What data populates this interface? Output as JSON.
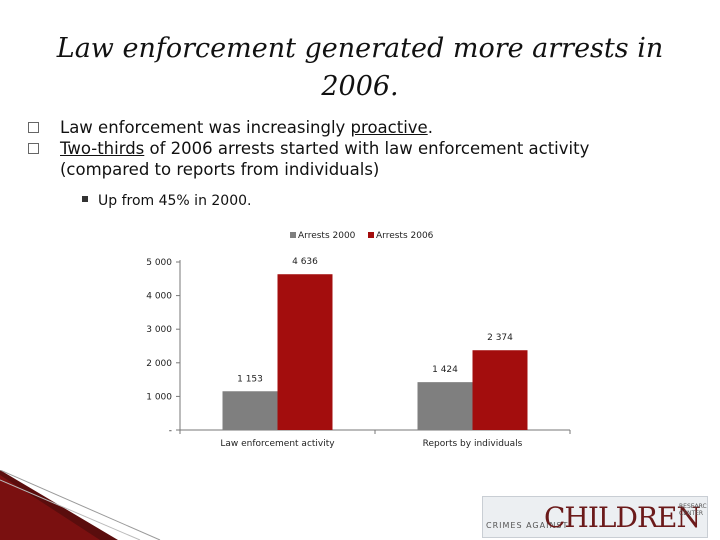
{
  "slide": {
    "title": "Law enforcement generated more arrests in 2006.",
    "bullet1_pre": "Law enforcement was increasingly ",
    "bullet1_link": "proactive",
    "bullet1_post": ".",
    "bullet2_link": "Two-thirds",
    "bullet2_post": " of 2006 arrests started with law enforcement activity (compared to reports from individuals)",
    "subbullet": "Up from 45% in 2000.",
    "bullet_icon": "empty-square-icon",
    "subbullet_icon": "filled-square-icon"
  },
  "chart_data": {
    "type": "bar",
    "categories": [
      "Law enforcement activity",
      "Reports by individuals"
    ],
    "series": [
      {
        "name": "Arrests 2000",
        "values": [
          1153,
          1424
        ],
        "labels": [
          "1 153",
          "1 424"
        ],
        "color": "#7f7f7f"
      },
      {
        "name": "Arrests 2006",
        "values": [
          4636,
          2374
        ],
        "labels": [
          "4 636",
          "2 374"
        ],
        "color": "#a30d0d"
      }
    ],
    "yticks": [
      {
        "value": 0,
        "label": "-"
      },
      {
        "value": 1000,
        "label": "1 000"
      },
      {
        "value": 2000,
        "label": "2 000"
      },
      {
        "value": 3000,
        "label": "3 000"
      },
      {
        "value": 4000,
        "label": "4 000"
      },
      {
        "value": 5000,
        "label": "5 000"
      }
    ],
    "ylim": [
      0,
      5000
    ],
    "grid": false,
    "legend_position": "top"
  },
  "logo": {
    "small_text": "CRIMES AGAINST",
    "big_text": "CHILDREN",
    "right_text": "RESEARCH CENTER"
  },
  "colors": {
    "accent_dark_red": "#a30d0d",
    "series_gray": "#7f7f7f"
  }
}
